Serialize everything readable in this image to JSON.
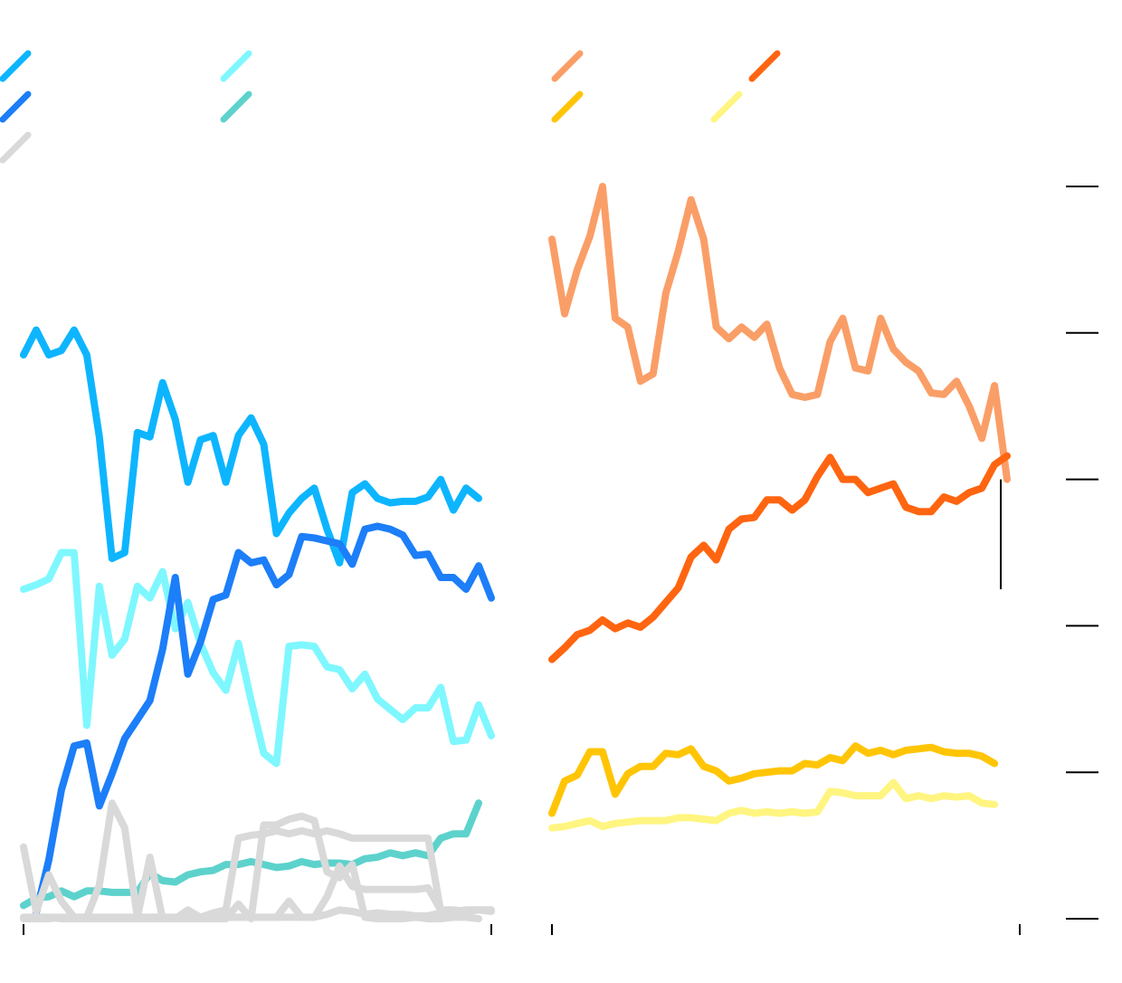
{
  "chart_data": [
    {
      "type": "line",
      "panel": "left",
      "ylim": [
        0,
        500
      ],
      "xlim": [
        1,
        38
      ],
      "legend_placement": "top-left",
      "grid": false,
      "series": [
        {
          "color": "#0db5ff",
          "values": [
            385,
            402,
            385,
            388,
            402,
            385,
            329,
            246,
            250,
            332,
            329,
            366,
            341,
            298,
            327,
            330,
            298,
            330,
            342,
            324,
            263,
            277,
            287,
            294,
            266,
            243,
            291,
            297,
            287,
            284,
            285,
            285,
            288,
            300,
            279,
            294,
            287
          ]
        },
        {
          "color": "#7ff7ff",
          "values": [
            225,
            228,
            232,
            250,
            250,
            132,
            227,
            180,
            191,
            227,
            219,
            237,
            198,
            216,
            188,
            168,
            156,
            188,
            149,
            113,
            106,
            186,
            187,
            186,
            172,
            170,
            157,
            167,
            150,
            143,
            136,
            144,
            144,
            158,
            121,
            122,
            146,
            125
          ]
        },
        {
          "color": "#1c7ef8",
          "values": [
            null,
            4,
            40,
            88,
            118,
            120,
            77,
            99,
            123,
            136,
            149,
            184,
            233,
            167,
            189,
            218,
            221,
            250,
            243,
            245,
            228,
            235,
            261,
            260,
            258,
            256,
            242,
            266,
            268,
            266,
            262,
            248,
            249,
            233,
            233,
            225,
            241,
            219
          ]
        },
        {
          "color": "#5dd2cc",
          "values": [
            9,
            14,
            15,
            19,
            15,
            19,
            19,
            18,
            18,
            18,
            31,
            26,
            25,
            30,
            32,
            33,
            37,
            37,
            39,
            37,
            35,
            36,
            39,
            37,
            38,
            38,
            37,
            41,
            42,
            45,
            43,
            45,
            43,
            55,
            58,
            58,
            79
          ]
        },
        {
          "color": "#d9d9d9",
          "values": [
            49,
            5,
            30,
            12,
            1,
            1,
            23,
            79,
            62,
            1,
            42,
            0,
            0,
            0,
            0,
            0,
            0,
            10,
            0,
            64,
            64,
            68,
            70,
            67,
            32,
            28,
            37,
            1,
            0,
            0,
            0,
            1,
            0,
            0,
            1,
            1,
            0
          ]
        },
        {
          "color": "#d9d9d9",
          "values": [
            0,
            0,
            0,
            1,
            1,
            1,
            1,
            1,
            1,
            1,
            1,
            1,
            1,
            1,
            1,
            1,
            1,
            1,
            1,
            1,
            1,
            12,
            1,
            1,
            3,
            6,
            5,
            3,
            4,
            3,
            3,
            2,
            2,
            4,
            3,
            2
          ]
        },
        {
          "color": "#d9d9d9",
          "values": [
            1,
            1,
            1,
            1,
            1,
            1,
            1,
            1,
            1,
            1,
            1,
            1,
            1,
            1,
            1,
            1,
            1,
            1,
            1,
            1,
            1,
            1,
            1,
            1,
            15,
            36,
            22,
            20,
            20,
            20,
            20,
            20,
            21,
            6,
            6,
            5,
            6,
            6
          ]
        },
        {
          "color": "#d9d9d9",
          "values": [
            1,
            1,
            1,
            0,
            0,
            0,
            0,
            0,
            0,
            0,
            0,
            0,
            0,
            6,
            1,
            4,
            6,
            55,
            57,
            58,
            60,
            58,
            60,
            58,
            60,
            58,
            55,
            55,
            55,
            55,
            55,
            55,
            55,
            5,
            5,
            6,
            6,
            5
          ]
        }
      ],
      "x_ticks": [
        "",
        ""
      ]
    },
    {
      "type": "line",
      "panel": "right",
      "ylim": [
        0,
        500
      ],
      "xlim": [
        1,
        38
      ],
      "legend_placement": "top-left",
      "grid": false,
      "y_ticks": [
        "",
        "",
        "",
        "",
        "",
        ""
      ],
      "series": [
        {
          "color": "#fa9e67",
          "values": [
            464,
            413,
            443,
            466,
            500,
            410,
            404,
            367,
            372,
            427,
            456,
            491,
            464,
            404,
            396,
            404,
            397,
            406,
            376,
            358,
            356,
            358,
            394,
            410,
            376,
            374,
            410,
            389,
            380,
            374,
            359,
            358,
            367,
            350,
            328,
            364,
            300
          ]
        },
        {
          "color": "#ff6510",
          "values": [
            177,
            185,
            194,
            197,
            204,
            198,
            202,
            199,
            206,
            216,
            226,
            247,
            255,
            245,
            266,
            273,
            274,
            286,
            286,
            279,
            286,
            302,
            315,
            300,
            300,
            291,
            294,
            297,
            281,
            278,
            278,
            288,
            285,
            291,
            294,
            310,
            316
          ]
        },
        {
          "color": "#ffc505",
          "values": [
            72,
            94,
            98,
            114,
            114,
            85,
            99,
            104,
            104,
            113,
            112,
            116,
            104,
            101,
            94,
            96,
            99,
            100,
            101,
            101,
            106,
            105,
            110,
            108,
            118,
            113,
            115,
            112,
            115,
            116,
            117,
            114,
            113,
            113,
            111,
            106
          ]
        },
        {
          "color": "#fff580",
          "values": [
            62,
            63,
            65,
            67,
            63,
            65,
            66,
            67,
            67,
            67,
            69,
            69,
            68,
            67,
            72,
            74,
            72,
            73,
            72,
            73,
            72,
            73,
            87,
            86,
            84,
            84,
            84,
            93,
            82,
            84,
            82,
            84,
            83,
            84,
            79,
            78
          ]
        }
      ],
      "x_ticks": [
        "",
        ""
      ],
      "annotations": [
        {
          "type": "vertical-line",
          "x": 36.5,
          "y_from": 225,
          "y_to": 300
        }
      ]
    }
  ]
}
